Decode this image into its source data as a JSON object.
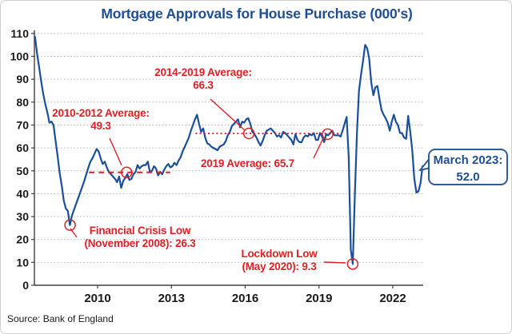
{
  "title": "Mortgage Approvals for House Purchase (000's)",
  "source": "Source: Bank of England",
  "colors": {
    "line": "#1a4f9c",
    "annotation_red": "#e41e25",
    "title_blue": "#1f4e96",
    "grid": "#b3b3b3",
    "axis": "#404040",
    "tick_label": "#1a1a1a",
    "callout_border": "#2e5a9e"
  },
  "annotations": {
    "avg_2010_2012": {
      "line1": "2010-2012 Average:",
      "line2": "49.3"
    },
    "avg_2014_2019": {
      "line1": "2014-2019 Average:",
      "line2": "66.3"
    },
    "avg_2019": {
      "text": "2019 Average: 65.7"
    },
    "crisis_low": {
      "line1": "Financial Crisis Low",
      "line2": "(November 2008): 26.3"
    },
    "lockdown_low": {
      "line1": "Lockdown Low",
      "line2": "(May 2020): 9.3"
    }
  },
  "callout": {
    "line1": "March 2023:",
    "line2": "52.0"
  },
  "chart_data": {
    "type": "line",
    "title": "Mortgage Approvals for House Purchase (000's)",
    "xlabel": "",
    "ylabel": "",
    "ylim": [
      0,
      110
    ],
    "yticks": [
      0,
      10,
      20,
      30,
      40,
      50,
      60,
      70,
      80,
      90,
      100,
      110
    ],
    "xticks": [
      2010,
      2013,
      2016,
      2019,
      2022
    ],
    "x_range_years": [
      2007.45,
      2023.3
    ],
    "grid": "horizontal dotted",
    "legend": "none",
    "series": [
      {
        "name": "Mortgage approvals for house purchase (000's)",
        "frequency": "monthly",
        "start": "2007-06",
        "end": "2023-03",
        "values": [
          108.5,
          101,
          95,
          89,
          83.5,
          79,
          75.5,
          71,
          71.5,
          70,
          63,
          56.5,
          49,
          43.5,
          37,
          33.5,
          32.5,
          26.3,
          30.5,
          33,
          35.5,
          38,
          40.5,
          43,
          45.5,
          48.5,
          51.5,
          54,
          55.5,
          57.5,
          59.5,
          58.5,
          55.5,
          53,
          54,
          51.5,
          49.5,
          48.5,
          47.5,
          46.5,
          45,
          47.5,
          42.5,
          45.5,
          47,
          48.5,
          46,
          46.5,
          48.5,
          49.5,
          52.5,
          51,
          52,
          52.5,
          52.5,
          54,
          49.5,
          50,
          52,
          51,
          48,
          49.5,
          48.5,
          50.5,
          52,
          53,
          51.5,
          52,
          53.5,
          52.5,
          54.5,
          56,
          58.5,
          60.5,
          62.5,
          64.5,
          67.5,
          70,
          72.5,
          74.5,
          70.5,
          67,
          68.5,
          64.5,
          62,
          61.5,
          60.5,
          60,
          59.5,
          59,
          60.5,
          61,
          61.5,
          63,
          65.5,
          67,
          69.5,
          70.5,
          71.5,
          72.5,
          69,
          71.5,
          71,
          72.5,
          73,
          70.5,
          67,
          66,
          64.5,
          62.5,
          61,
          63,
          65.5,
          67.5,
          68,
          68.5,
          67.5,
          66.5,
          65,
          65.5,
          64.5,
          67,
          66.5,
          65.5,
          64.5,
          63.5,
          61.5,
          66,
          63.5,
          62.5,
          62.5,
          64.5,
          65.5,
          65,
          66,
          65.5,
          66.5,
          63.5,
          63.5,
          66.5,
          65,
          62.5,
          66,
          65.5,
          66.5,
          67.5,
          65.5,
          65.5,
          65.5,
          65,
          67.5,
          70.5,
          73.5,
          56,
          15.5,
          9.3,
          40,
          66.5,
          85,
          92,
          98,
          105,
          103.5,
          99,
          88.5,
          83,
          86.5,
          87,
          81.5,
          76.5,
          74.5,
          73,
          71,
          67.5,
          71.5,
          74.5,
          71.5,
          70,
          66.5,
          66.5,
          64.5,
          64,
          74,
          67,
          59,
          46.5,
          40.5,
          41,
          44.5,
          52
        ]
      }
    ],
    "reference_lines": [
      {
        "label": "2010-2012 Average",
        "value": 49.3,
        "year_start": 2009.65,
        "year_end": 2012.95,
        "style": "dashed"
      },
      {
        "label": "2014-2019 Average",
        "value": 66.3,
        "year_start": 2013.98,
        "year_end": 2019.95,
        "style": "dotted"
      }
    ],
    "markers": [
      {
        "label": "2010-2012 Average: 49.3",
        "year": 2011.18,
        "value": 49.3
      },
      {
        "label": "2014-2019 Average: 66.3",
        "year": 2016.15,
        "value": 66.3
      },
      {
        "label": "2019 Average: 65.7",
        "year": 2019.35,
        "value": 66.0
      },
      {
        "label": "Financial Crisis Low (November 2008): 26.3",
        "year": 2008.88,
        "value": 26.3
      },
      {
        "label": "Lockdown Low (May 2020): 9.3",
        "year": 2020.37,
        "value": 9.3
      }
    ],
    "callout_point": {
      "label": "March 2023",
      "value": 52.0
    }
  }
}
